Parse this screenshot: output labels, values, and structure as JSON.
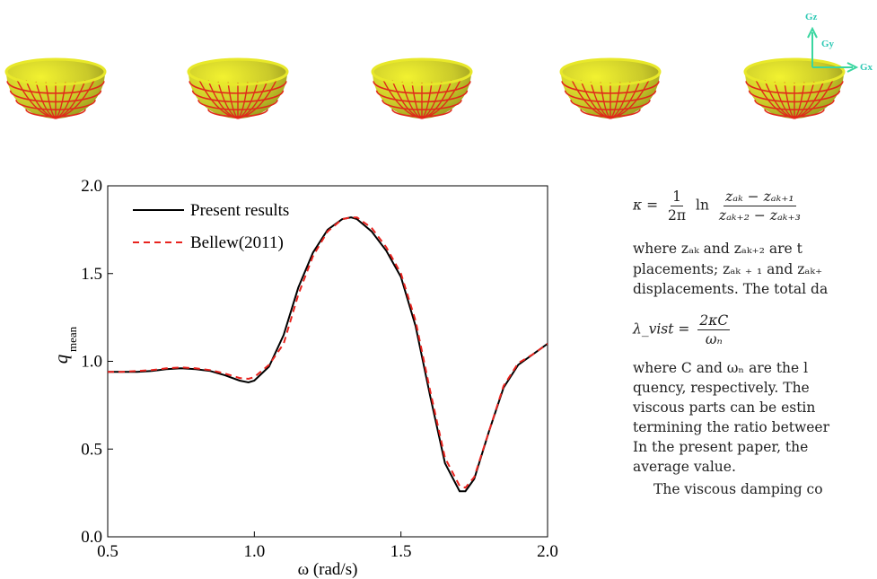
{
  "figure_labels": [
    "Gz",
    "Gy",
    "Gx"
  ],
  "chart_data": {
    "type": "line",
    "x": [
      0.5,
      0.55,
      0.6,
      0.65,
      0.7,
      0.75,
      0.8,
      0.85,
      0.9,
      0.95,
      0.98,
      1.0,
      1.05,
      1.1,
      1.15,
      1.2,
      1.25,
      1.3,
      1.33,
      1.35,
      1.4,
      1.45,
      1.5,
      1.55,
      1.6,
      1.65,
      1.7,
      1.72,
      1.75,
      1.8,
      1.85,
      1.9,
      1.95,
      2.0
    ],
    "series": [
      {
        "name": "Present results",
        "color": "#000000",
        "dash": false,
        "values": [
          0.94,
          0.94,
          0.94,
          0.945,
          0.955,
          0.96,
          0.955,
          0.945,
          0.92,
          0.89,
          0.88,
          0.89,
          0.97,
          1.15,
          1.42,
          1.62,
          1.75,
          1.81,
          1.82,
          1.81,
          1.74,
          1.63,
          1.48,
          1.2,
          0.8,
          0.42,
          0.26,
          0.26,
          0.33,
          0.6,
          0.85,
          0.98,
          1.04,
          1.1
        ]
      },
      {
        "name": "Bellew(2011)",
        "color": "#e8231e",
        "dash": true,
        "values": [
          0.94,
          0.94,
          0.945,
          0.95,
          0.96,
          0.965,
          0.96,
          0.95,
          0.93,
          0.905,
          0.9,
          0.91,
          0.98,
          1.1,
          1.38,
          1.6,
          1.74,
          1.81,
          1.82,
          1.82,
          1.76,
          1.65,
          1.5,
          1.23,
          0.83,
          0.45,
          0.29,
          0.28,
          0.34,
          0.6,
          0.86,
          0.99,
          1.04,
          1.1
        ]
      }
    ],
    "xlim": [
      0.5,
      2.0
    ],
    "ylim": [
      0.0,
      2.0
    ],
    "xticks": [
      0.5,
      {
        "value": 1,
        "label": "1.0"
      },
      1.5,
      {
        "value": 2,
        "label": "2.0"
      }
    ],
    "yticks": [
      {
        "value": 0,
        "label": "0.0"
      },
      0.5,
      {
        "value": 1,
        "label": "1.0"
      },
      1.5,
      {
        "value": 2,
        "label": "2.0"
      }
    ],
    "xlabel": "ω (rad/s)",
    "ylabel": {
      "symbol": "q",
      "subscript": "mean"
    },
    "legend": "upper left"
  },
  "text": {
    "eq1": {
      "lhs": "κ =",
      "coef_num": "1",
      "coef_den": "2π",
      "op": "ln",
      "num": "zₐₖ − zₐₖ₊₁",
      "den": "zₐₖ₊₂ − zₐₖ₊₃"
    },
    "para1": [
      "where zₐₖ and zₐₖ₊₂ are t",
      "placements; zₐₖ ₊ ₁ and zₐₖ₊",
      "displacements. The total da"
    ],
    "eq2": {
      "lhs": "λ_vist =",
      "num": "2κC",
      "den": "ωₙ"
    },
    "para2": [
      "where C and ωₙ are the l",
      "quency, respectively. The",
      "viscous parts can be estin",
      "termining the ratio betweer",
      "In the present paper, the",
      "average value."
    ],
    "para3": "The viscous damping co"
  }
}
